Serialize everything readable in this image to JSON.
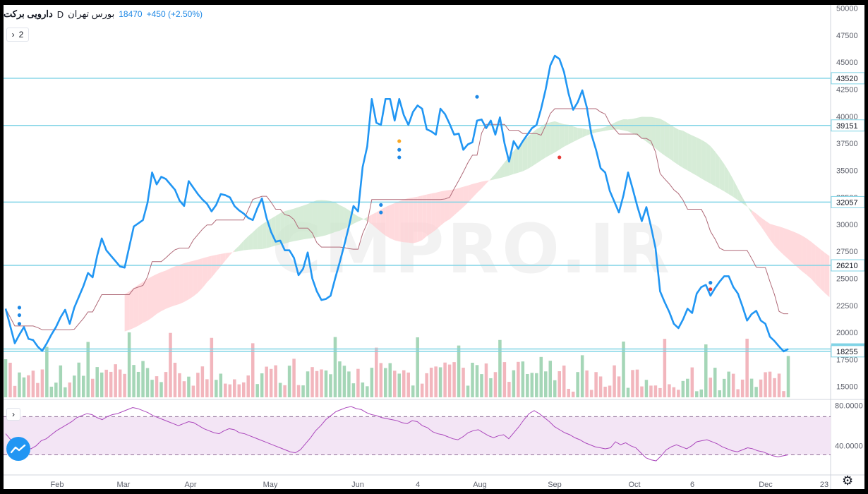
{
  "header": {
    "symbol": "دارویی برکت",
    "interval": "D",
    "exchange": "بورس تهران",
    "last": "18470",
    "change": "+450 (+2.50%)"
  },
  "pane_toggle": "2",
  "watermark": "CMPRO.IR",
  "colors": {
    "price": "#2196f3",
    "level": "#81d4e6",
    "baseline": "#b06a78",
    "cloud_up": "#c8e6c9",
    "cloud_down": "#ffcdd2",
    "vol_up": "#a5d6b7",
    "vol_down": "#f2b6bd",
    "rsi": "#ab47bc",
    "rsi_band": "#f3e5f5"
  },
  "chart_data": [
    {
      "type": "line",
      "title": "",
      "x_labels": [
        "Feb",
        "Mar",
        "Apr",
        "May",
        "Jun",
        "4",
        "Aug",
        "Sep",
        "Oct",
        "6",
        "Dec",
        "23"
      ],
      "y_ticks": [
        15000,
        17500,
        20000,
        22500,
        25000,
        27500,
        30000,
        32500,
        35000,
        37500,
        40000,
        42500,
        45000,
        47500,
        50000
      ],
      "ylim": [
        14000,
        50300
      ],
      "price_levels": [
        43520,
        39151,
        32057,
        26210,
        18470,
        18255
      ],
      "series": [
        {
          "values": [
            22200,
            20600,
            19000,
            19800,
            20500,
            19400,
            19300,
            18700,
            18300,
            19000,
            19800,
            20500,
            21400,
            22100,
            20800,
            22300,
            23300,
            24300,
            25500,
            25100,
            27100,
            28700,
            27600,
            27100,
            26600,
            26100,
            26000,
            27900,
            29800,
            30100,
            30400,
            32000,
            34800,
            33700,
            34400,
            34200,
            33700,
            33200,
            32200,
            31700,
            34000,
            33400,
            32800,
            32300,
            31900,
            31200,
            31800,
            32800,
            32700,
            32500,
            31700,
            31300,
            31000,
            30600,
            30400,
            31500,
            32400,
            30600,
            29300,
            28400,
            28500,
            27600,
            27600,
            26900,
            25300,
            25900,
            27400,
            25000,
            23800,
            23000,
            23100,
            23400,
            25000,
            26500,
            28100,
            29800,
            31700,
            31200,
            35300,
            37200,
            41600,
            39400,
            39200,
            41600,
            41600,
            39600,
            41600,
            40100,
            39200,
            40400,
            41000,
            40700,
            38800,
            38600,
            38300,
            40700,
            40200,
            39300,
            38300,
            38400,
            36900,
            37400,
            37600,
            39600,
            39700,
            38900,
            39600,
            38300,
            39900,
            37500,
            35800,
            37700,
            37000,
            37700,
            38300,
            38900,
            39200,
            40700,
            42500,
            44700,
            45600,
            45300,
            44100,
            42100,
            40600,
            41300,
            42400,
            40800,
            38300,
            36900,
            35200,
            34800,
            33100,
            32100,
            31100,
            32700,
            34800,
            33300,
            31700,
            30300,
            31600,
            29800,
            27800,
            23800,
            22800,
            21900,
            20800,
            20400,
            21200,
            22200,
            21800,
            23600,
            24200,
            24400,
            23400,
            24100,
            24700,
            25200,
            25200,
            24200,
            23600,
            22400,
            21100,
            21700,
            22000,
            21100,
            20800,
            19600,
            19200,
            18700,
            18250,
            18470
          ]
        }
      ],
      "volume_note": "volume histogram below price"
    },
    {
      "type": "line",
      "title": "",
      "y_ticks": [
        40,
        80
      ],
      "tick_labels": [
        "40.0000",
        "80.0000"
      ],
      "ylim": [
        18,
        84
      ],
      "bands": [
        31,
        69
      ],
      "series": [
        {
          "values": [
            52,
            46,
            44,
            40,
            38,
            37,
            40,
            45,
            47,
            51,
            55,
            58,
            61,
            64,
            68,
            70,
            72,
            71,
            68,
            66,
            69,
            71,
            72,
            74,
            76,
            78,
            77,
            75,
            73,
            70,
            68,
            66,
            64,
            62,
            60,
            62,
            64,
            63,
            60,
            57,
            55,
            53,
            52,
            55,
            57,
            56,
            53,
            52,
            50,
            48,
            46,
            44,
            42,
            40,
            38,
            36,
            34,
            33,
            36,
            42,
            48,
            55,
            60,
            66,
            70,
            74,
            76,
            78,
            79,
            77,
            76,
            73,
            71,
            70,
            68,
            67,
            66,
            65,
            63,
            62,
            65,
            64,
            60,
            58,
            54,
            52,
            51,
            49,
            47,
            46,
            49,
            53,
            55,
            56,
            53,
            50,
            48,
            50,
            51,
            47,
            53,
            59,
            66,
            72,
            75,
            72,
            68,
            64,
            59,
            56,
            53,
            51,
            48,
            46,
            43,
            41,
            39,
            38,
            37,
            38,
            44,
            41,
            43,
            40,
            38,
            33,
            28,
            26,
            25,
            30,
            36,
            39,
            41,
            39,
            37,
            40,
            44,
            45,
            46,
            44,
            42,
            39,
            37,
            35,
            34,
            36,
            38,
            37,
            35,
            34,
            32,
            30,
            29,
            30,
            31
          ]
        }
      ]
    }
  ]
}
